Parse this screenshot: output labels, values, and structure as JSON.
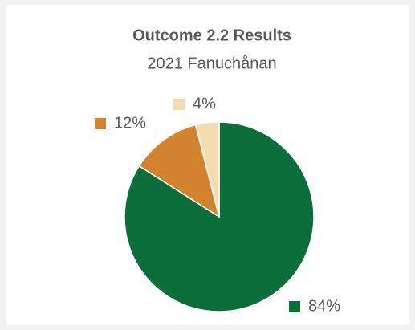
{
  "chart_data": {
    "type": "pie",
    "title": "Outcome 2.2 Results",
    "subtitle": "2021 Fanuchånan",
    "values": [
      84,
      12,
      4
    ],
    "value_labels": [
      "84%",
      "12%",
      "4%"
    ],
    "colors": [
      "#0b6e3b",
      "#d2832e",
      "#f3dcb0"
    ]
  }
}
